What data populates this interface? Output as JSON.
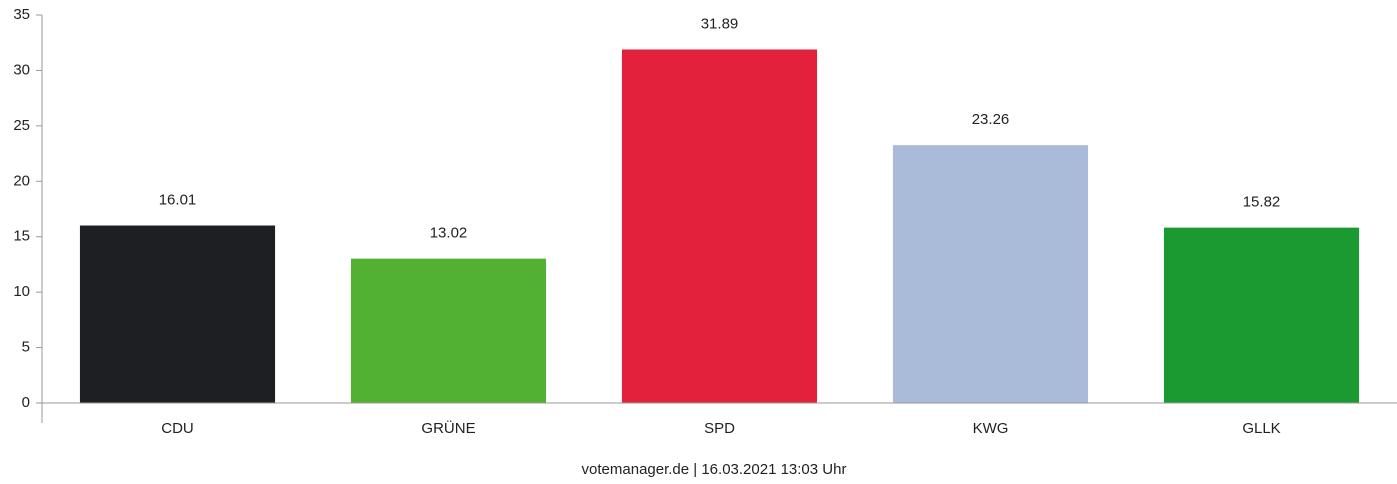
{
  "chart_data": {
    "type": "bar",
    "categories": [
      "CDU",
      "GRÜNE",
      "SPD",
      "KWG",
      "GLLK"
    ],
    "values": [
      16.01,
      13.02,
      31.89,
      23.26,
      15.82
    ],
    "colors": [
      "#1e1f23",
      "#52b032",
      "#e2223c",
      "#a9bbd9",
      "#1c9a32"
    ],
    "ylim": [
      0,
      35
    ],
    "yticks": [
      0,
      5,
      10,
      15,
      20,
      25,
      30,
      35
    ],
    "grid": false,
    "source": "votemanager.de | 16.03.2021 13:03 Uhr"
  }
}
